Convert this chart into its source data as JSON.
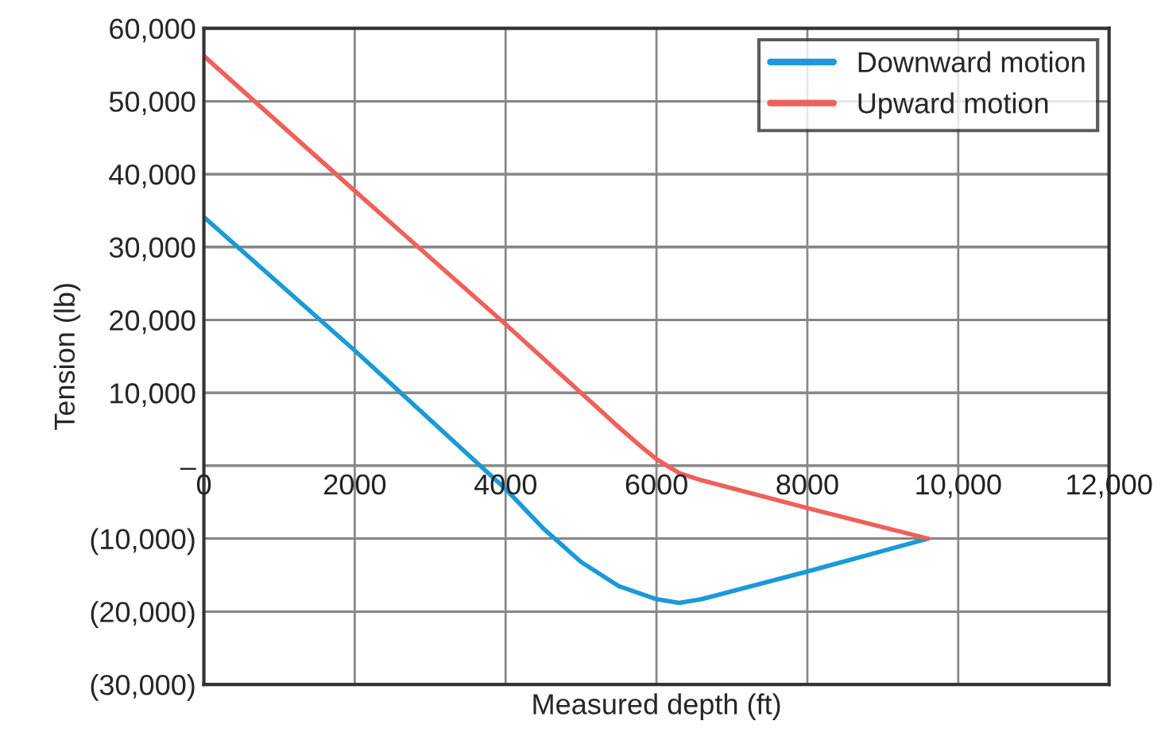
{
  "chart_data": {
    "type": "line",
    "xlabel": "Measured depth (ft)",
    "ylabel": "Tension (lb)",
    "xlim": [
      0,
      12000
    ],
    "ylim": [
      -30000,
      60000
    ],
    "xticks": [
      0,
      2000,
      4000,
      6000,
      8000,
      {
        "value": 10000,
        "label": "10,000"
      },
      {
        "value": 12000,
        "label": "12,000"
      }
    ],
    "yticks": [
      {
        "value": -30000,
        "label": "(30,000)"
      },
      {
        "value": -20000,
        "label": "(20,000)"
      },
      {
        "value": -10000,
        "label": "(10,000)"
      },
      {
        "value": 0,
        "label": "–"
      },
      {
        "value": 10000,
        "label": "10,000"
      },
      {
        "value": 20000,
        "label": "20,000"
      },
      {
        "value": 30000,
        "label": "30,000"
      },
      {
        "value": 40000,
        "label": "40,000"
      },
      {
        "value": 50000,
        "label": "50,000"
      },
      {
        "value": 60000,
        "label": "60,000"
      }
    ],
    "grid": true,
    "legend": "top right",
    "line_style": "solid",
    "series": [
      {
        "name": "Downward motion",
        "color": "#1a9ad6",
        "x": [
          0,
          2000,
          4000,
          4500,
          5000,
          5500,
          6000,
          6300,
          6600,
          8000,
          9600
        ],
        "values": [
          34100,
          15800,
          -3200,
          -8600,
          -13200,
          -16500,
          -18300,
          -18800,
          -18300,
          -14500,
          -10000
        ]
      },
      {
        "name": "Upward motion",
        "color": "#f0605a",
        "x": [
          0,
          2000,
          4000,
          5000,
          5500,
          5800,
          6000,
          6300,
          6600,
          8000,
          9600
        ],
        "values": [
          56200,
          37700,
          19400,
          10000,
          5300,
          2600,
          900,
          -1000,
          -2000,
          -5800,
          -10000
        ]
      }
    ]
  }
}
